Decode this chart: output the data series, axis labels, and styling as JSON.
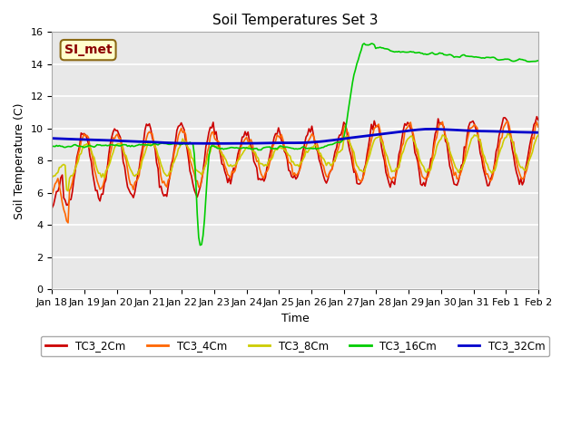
{
  "title": "Soil Temperatures Set 3",
  "xlabel": "Time",
  "ylabel": "Soil Temperature (C)",
  "ylim": [
    0,
    16
  ],
  "yticks": [
    0,
    2,
    4,
    6,
    8,
    10,
    12,
    14,
    16
  ],
  "bg_color": "#ffffff",
  "plot_bg_color": "#e8e8e8",
  "annotation_text": "SI_met",
  "annotation_color": "#8b0000",
  "annotation_bg": "#ffffcc",
  "annotation_border": "#8b6914",
  "line_colors": {
    "TC3_2Cm": "#cc0000",
    "TC3_4Cm": "#ff6600",
    "TC3_8Cm": "#cccc00",
    "TC3_16Cm": "#00cc00",
    "TC3_32Cm": "#0000cc"
  },
  "line_width": 1.2,
  "x_tick_labels": [
    "Jan 18",
    "Jan 19",
    "Jan 20",
    "Jan 21",
    "Jan 22",
    "Jan 23",
    "Jan 24",
    "Jan 25",
    "Jan 26",
    "Jan 27",
    "Jan 28",
    "Jan 29",
    "Jan 30",
    "Jan 31",
    "Feb 1",
    "Feb 2"
  ],
  "num_points": 336
}
